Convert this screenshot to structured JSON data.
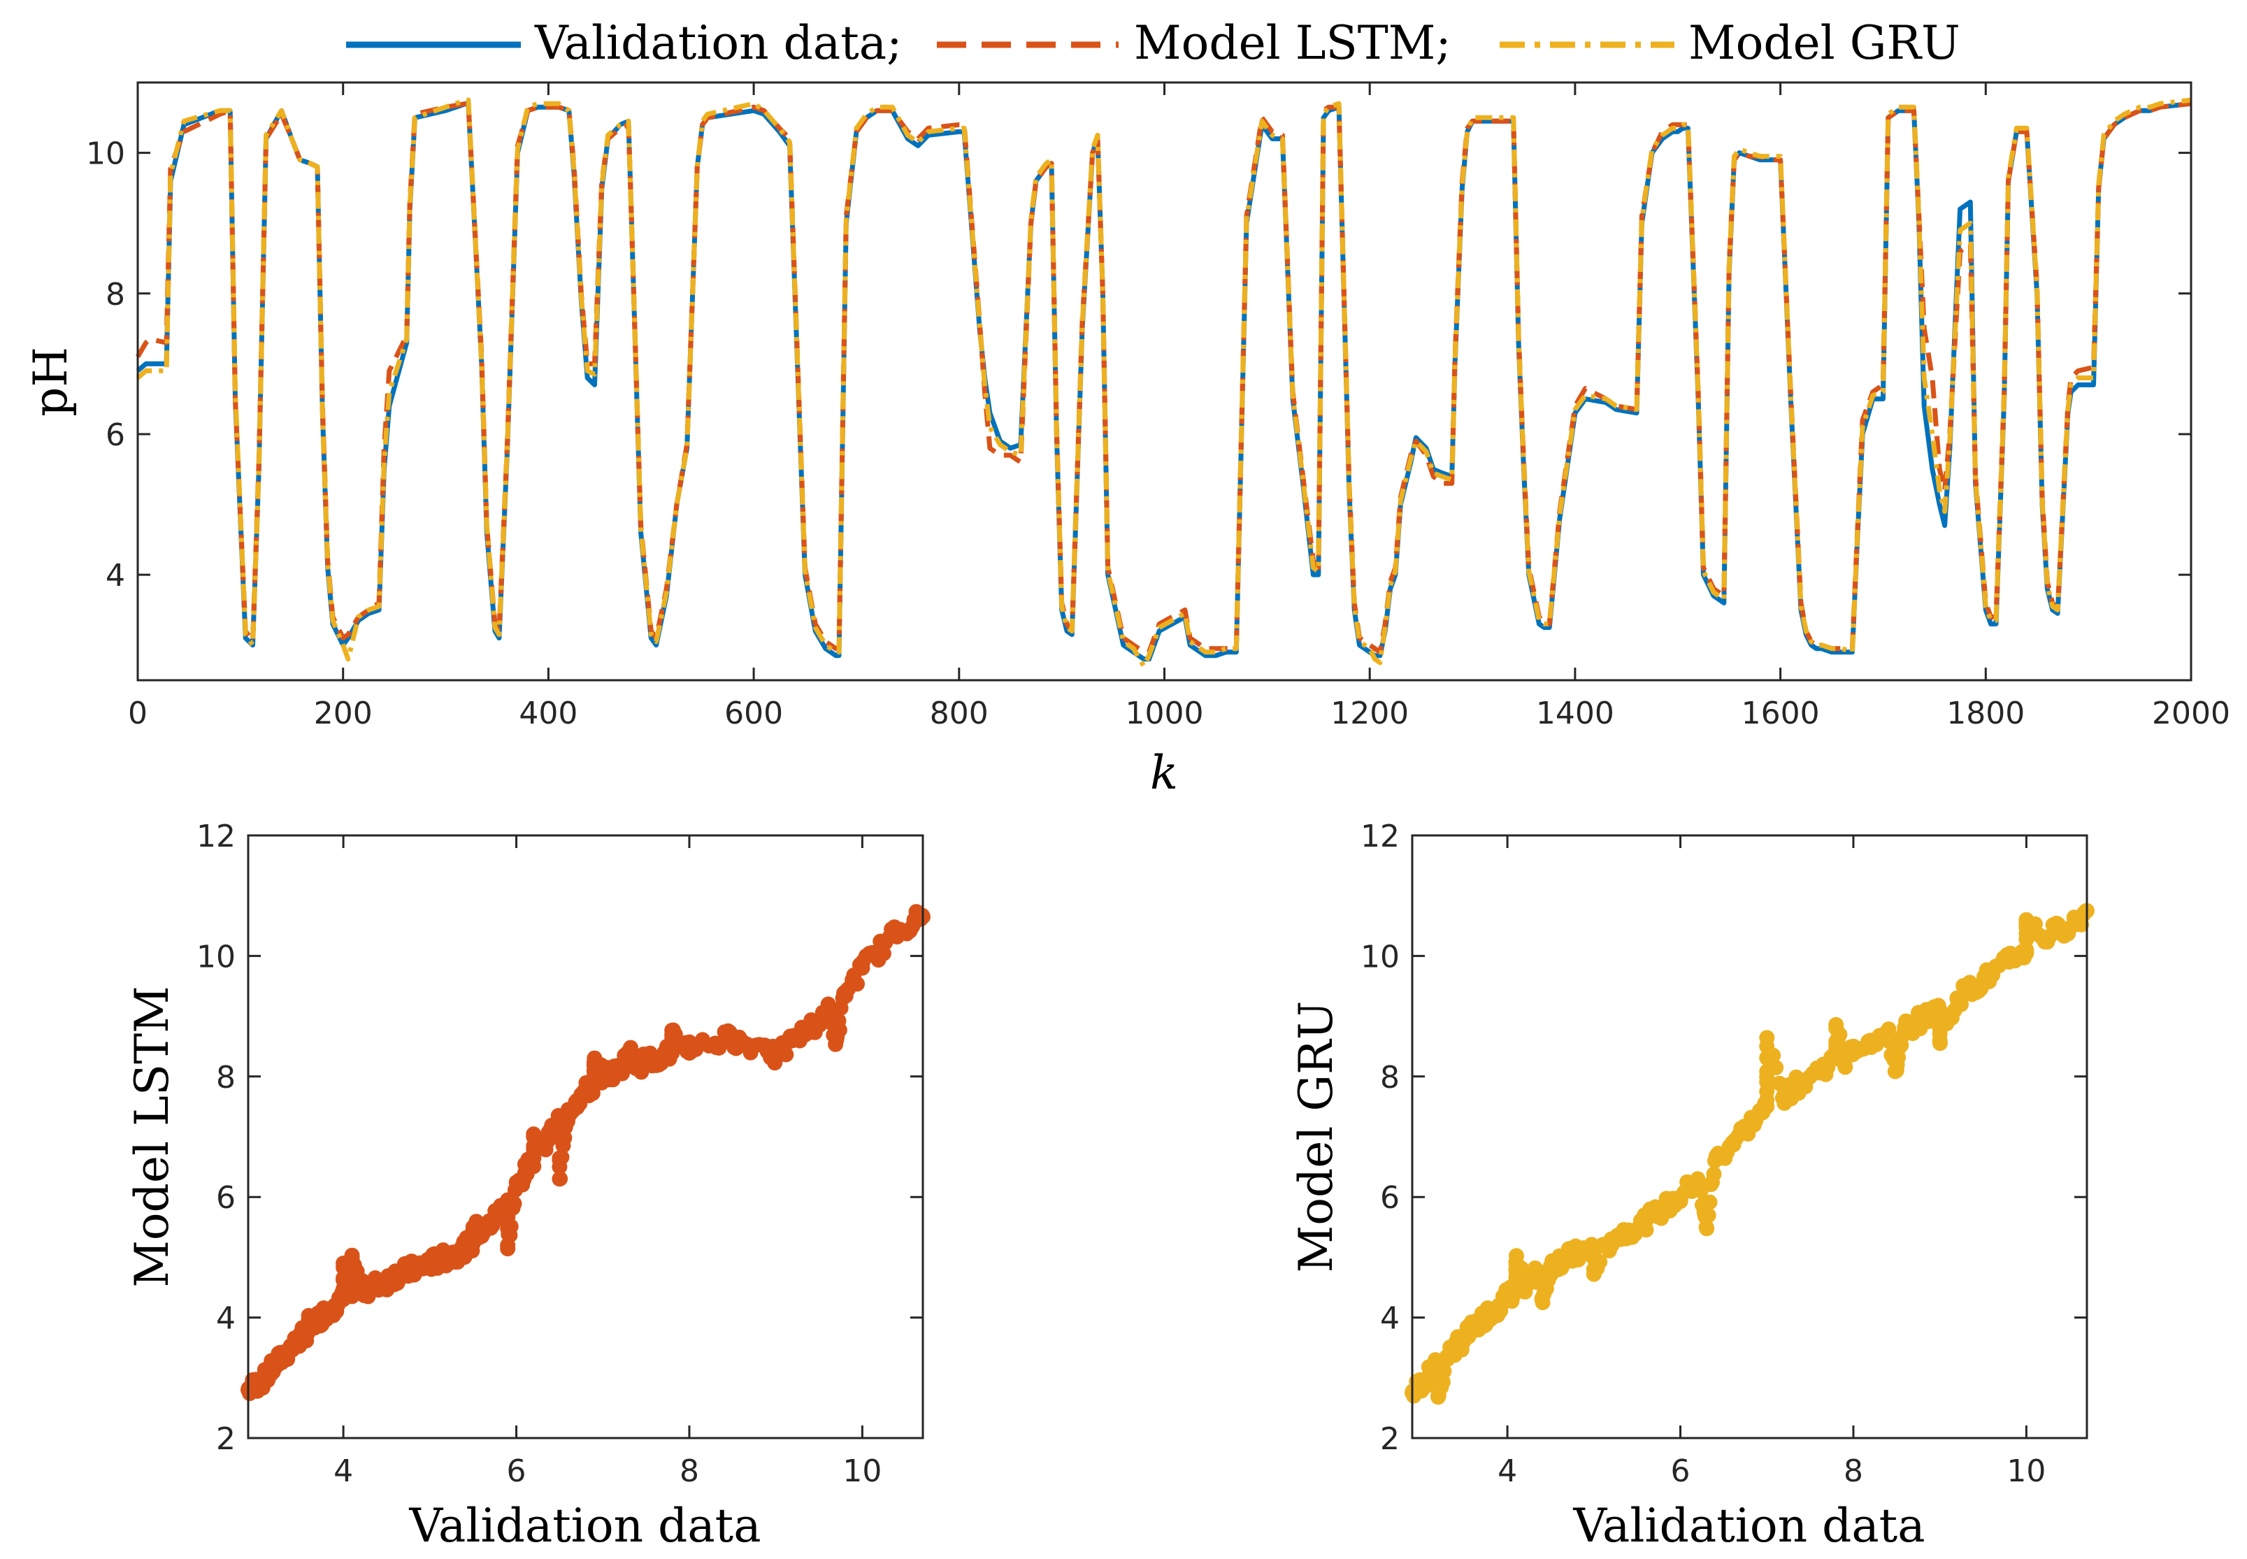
{
  "colors": {
    "validation": "#0072BD",
    "lstm": "#D95319",
    "gru": "#EDB120",
    "axis": "#262626"
  },
  "legend": {
    "validation_label": "Validation data;",
    "lstm_label": "Model LSTM;",
    "gru_label": "Model GRU"
  },
  "chart_data": [
    {
      "id": "timeseries",
      "type": "line",
      "xlabel": "k",
      "ylabel": "pH",
      "xlim": [
        0,
        2000
      ],
      "ylim": [
        2.5,
        11
      ],
      "xticks": [
        0,
        200,
        400,
        600,
        800,
        1000,
        1200,
        1400,
        1600,
        1800,
        2000
      ],
      "yticks": [
        4,
        6,
        8,
        10
      ],
      "grid": false,
      "legend_position": "top-outside",
      "series": [
        {
          "name": "Validation data",
          "style": "solid"
        },
        {
          "name": "Model LSTM",
          "style": "dashed"
        },
        {
          "name": "Model GRU",
          "style": "dash-dot"
        }
      ],
      "x": [
        0,
        8,
        12,
        28,
        32,
        45,
        80,
        90,
        95,
        105,
        112,
        118,
        125,
        140,
        150,
        158,
        168,
        175,
        180,
        185,
        190,
        200,
        205,
        215,
        225,
        235,
        240,
        245,
        262,
        265,
        270,
        300,
        320,
        322,
        335,
        340,
        348,
        352,
        360,
        370,
        380,
        390,
        410,
        420,
        425,
        432,
        438,
        445,
        452,
        458,
        470,
        478,
        480,
        490,
        500,
        505,
        515,
        525,
        535,
        545,
        550,
        555,
        600,
        610,
        625,
        635,
        645,
        650,
        660,
        670,
        680,
        683,
        690,
        700,
        710,
        720,
        735,
        750,
        760,
        770,
        800,
        805,
        820,
        825,
        830,
        840,
        850,
        860,
        870,
        875,
        885,
        890,
        895,
        900,
        905,
        910,
        920,
        930,
        935,
        940,
        945,
        960,
        970,
        980,
        985,
        995,
        1020,
        1025,
        1040,
        1050,
        1060,
        1070,
        1080,
        1095,
        1105,
        1115,
        1125,
        1135,
        1145,
        1150,
        1155,
        1160,
        1170,
        1180,
        1185,
        1190,
        1200,
        1205,
        1210,
        1215,
        1220,
        1225,
        1230,
        1235,
        1240,
        1245,
        1255,
        1262,
        1270,
        1280,
        1283,
        1290,
        1295,
        1300,
        1340,
        1345,
        1350,
        1355,
        1365,
        1370,
        1375,
        1385,
        1395,
        1400,
        1410,
        1430,
        1440,
        1460,
        1465,
        1475,
        1485,
        1490,
        1495,
        1500,
        1505,
        1510,
        1520,
        1525,
        1535,
        1545,
        1550,
        1555,
        1560,
        1570,
        1580,
        1590,
        1600,
        1610,
        1620,
        1625,
        1630,
        1635,
        1640,
        1650,
        1660,
        1670,
        1675,
        1680,
        1690,
        1700,
        1705,
        1715,
        1730,
        1735,
        1740,
        1748,
        1755,
        1760,
        1765,
        1775,
        1785,
        1790,
        1800,
        1805,
        1810,
        1818,
        1822,
        1830,
        1840,
        1850,
        1855,
        1860,
        1865,
        1870,
        1880,
        1883,
        1890,
        1905,
        1910,
        1915,
        1925,
        1935,
        1950,
        1960,
        1970,
        2000
      ],
      "validation": [
        6.9,
        7.0,
        7.0,
        7.0,
        9.6,
        10.4,
        10.6,
        10.6,
        6.5,
        3.1,
        3.0,
        5.5,
        10.2,
        10.6,
        10.2,
        9.9,
        9.85,
        9.8,
        6.3,
        4.1,
        3.3,
        3.0,
        3.1,
        3.35,
        3.45,
        3.5,
        5.5,
        6.4,
        7.3,
        9.2,
        10.5,
        10.6,
        10.7,
        10.7,
        7.0,
        4.6,
        3.2,
        3.1,
        5.8,
        10.0,
        10.6,
        10.65,
        10.65,
        10.6,
        9.7,
        7.9,
        6.8,
        6.7,
        9.5,
        10.2,
        10.4,
        10.45,
        9.5,
        4.6,
        3.1,
        3.0,
        3.7,
        5.0,
        5.8,
        9.8,
        10.4,
        10.5,
        10.6,
        10.55,
        10.3,
        10.1,
        6.0,
        4.0,
        3.2,
        2.95,
        2.85,
        2.85,
        9.0,
        10.3,
        10.5,
        10.6,
        10.6,
        10.2,
        10.1,
        10.25,
        10.3,
        10.3,
        7.5,
        6.8,
        6.3,
        5.9,
        5.8,
        5.85,
        9.0,
        9.6,
        9.8,
        9.85,
        6.0,
        3.5,
        3.2,
        3.15,
        7.5,
        10.0,
        10.2,
        8.0,
        4.0,
        3.0,
        2.9,
        2.8,
        2.8,
        3.2,
        3.4,
        3.0,
        2.85,
        2.85,
        2.9,
        2.9,
        9.0,
        10.4,
        10.2,
        10.2,
        6.5,
        5.3,
        4.0,
        4.0,
        10.5,
        10.6,
        10.65,
        5.2,
        3.5,
        3.0,
        2.9,
        2.85,
        2.85,
        3.2,
        3.8,
        4.0,
        5.0,
        5.3,
        5.6,
        5.95,
        5.8,
        5.5,
        5.45,
        5.4,
        7.0,
        9.5,
        10.3,
        10.45,
        10.45,
        7.3,
        5.5,
        4.0,
        3.3,
        3.25,
        3.25,
        4.8,
        5.8,
        6.3,
        6.5,
        6.45,
        6.35,
        6.3,
        9.0,
        10.0,
        10.2,
        10.25,
        10.3,
        10.3,
        10.35,
        10.35,
        6.5,
        4.0,
        3.7,
        3.6,
        8.3,
        9.9,
        10.0,
        9.95,
        9.9,
        9.9,
        9.9,
        6.5,
        3.5,
        3.15,
        3.0,
        2.95,
        2.95,
        2.9,
        2.9,
        2.9,
        4.5,
        6.0,
        6.5,
        6.5,
        10.5,
        10.6,
        10.6,
        9.0,
        6.4,
        5.5,
        5.0,
        4.7,
        5.8,
        9.2,
        9.3,
        5.3,
        3.5,
        3.3,
        3.3,
        6.5,
        9.6,
        10.3,
        10.3,
        8.0,
        5.0,
        3.8,
        3.5,
        3.45,
        6.3,
        6.6,
        6.7,
        6.7,
        9.5,
        10.2,
        10.4,
        10.5,
        10.6,
        10.6,
        10.65,
        10.7,
        10.7
      ],
      "lstm": [
        7.1,
        7.3,
        7.35,
        7.3,
        9.8,
        10.3,
        10.55,
        10.6,
        6.5,
        3.2,
        3.05,
        5.6,
        10.2,
        10.55,
        10.2,
        9.9,
        9.85,
        9.8,
        6.4,
        4.2,
        3.4,
        3.1,
        3.15,
        3.4,
        3.5,
        3.6,
        5.8,
        6.9,
        7.4,
        9.3,
        10.55,
        10.65,
        10.7,
        10.7,
        7.1,
        4.7,
        3.3,
        3.2,
        5.9,
        10.1,
        10.6,
        10.65,
        10.65,
        10.6,
        9.8,
        8.0,
        7.0,
        7.0,
        9.6,
        10.2,
        10.35,
        10.4,
        9.5,
        4.7,
        3.2,
        3.1,
        3.8,
        5.0,
        5.85,
        9.8,
        10.4,
        10.5,
        10.65,
        10.6,
        10.35,
        10.2,
        6.1,
        4.1,
        3.3,
        3.05,
        2.95,
        2.95,
        9.1,
        10.3,
        10.5,
        10.6,
        10.6,
        10.3,
        10.2,
        10.35,
        10.4,
        10.4,
        7.6,
        6.6,
        5.8,
        5.7,
        5.7,
        5.6,
        9.0,
        9.6,
        9.8,
        9.85,
        6.1,
        3.6,
        3.3,
        3.2,
        7.6,
        10.0,
        10.2,
        8.0,
        4.1,
        3.1,
        3.0,
        2.9,
        2.9,
        3.3,
        3.5,
        3.1,
        2.95,
        2.95,
        2.95,
        2.95,
        9.1,
        10.5,
        10.3,
        10.25,
        6.6,
        5.4,
        4.2,
        4.1,
        10.6,
        10.65,
        10.65,
        5.3,
        3.6,
        3.1,
        3.0,
        2.95,
        2.9,
        3.3,
        3.9,
        4.1,
        5.1,
        5.4,
        5.7,
        5.9,
        5.7,
        5.4,
        5.3,
        5.3,
        7.1,
        9.6,
        10.35,
        10.45,
        10.45,
        7.4,
        5.6,
        4.1,
        3.4,
        3.3,
        3.3,
        4.9,
        5.9,
        6.4,
        6.65,
        6.5,
        6.4,
        6.35,
        9.1,
        10.0,
        10.3,
        10.35,
        10.4,
        10.4,
        10.4,
        10.4,
        6.6,
        4.1,
        3.8,
        3.7,
        8.4,
        9.9,
        10.0,
        9.95,
        9.95,
        9.9,
        9.9,
        6.6,
        3.6,
        3.2,
        3.05,
        3.0,
        3.0,
        2.95,
        2.95,
        2.95,
        4.6,
        6.2,
        6.6,
        6.7,
        10.5,
        10.6,
        10.6,
        9.1,
        7.5,
        6.8,
        5.5,
        5.2,
        6.0,
        8.6,
        8.7,
        5.4,
        3.6,
        3.4,
        3.4,
        6.6,
        9.6,
        10.3,
        10.3,
        8.1,
        5.1,
        3.9,
        3.6,
        3.5,
        6.4,
        6.8,
        6.9,
        6.95,
        9.5,
        10.2,
        10.4,
        10.5,
        10.6,
        10.6,
        10.65,
        10.7,
        10.7
      ],
      "gru": [
        6.8,
        6.9,
        6.9,
        6.9,
        9.7,
        10.45,
        10.6,
        10.6,
        6.6,
        3.15,
        3.0,
        5.5,
        10.25,
        10.6,
        10.2,
        9.9,
        9.85,
        9.8,
        6.3,
        4.15,
        3.35,
        3.0,
        2.8,
        3.4,
        3.5,
        3.55,
        5.6,
        6.6,
        7.35,
        9.25,
        10.5,
        10.65,
        10.75,
        10.75,
        7.0,
        4.7,
        3.25,
        3.15,
        5.85,
        10.05,
        10.65,
        10.7,
        10.7,
        10.6,
        9.75,
        7.95,
        6.9,
        6.85,
        9.55,
        10.25,
        10.4,
        10.45,
        9.5,
        4.65,
        3.15,
        3.05,
        3.75,
        5.0,
        5.8,
        9.8,
        10.45,
        10.55,
        10.7,
        10.6,
        10.35,
        10.15,
        6.05,
        4.05,
        3.25,
        3.0,
        2.9,
        2.9,
        9.05,
        10.35,
        10.55,
        10.65,
        10.65,
        10.25,
        10.15,
        10.3,
        10.35,
        10.35,
        7.55,
        6.7,
        6.1,
        5.85,
        5.75,
        5.7,
        9.05,
        9.65,
        9.85,
        9.9,
        6.05,
        3.55,
        3.25,
        3.2,
        7.55,
        10.05,
        10.25,
        8.0,
        4.05,
        3.05,
        2.95,
        2.7,
        2.85,
        3.25,
        3.45,
        3.05,
        2.9,
        2.9,
        2.95,
        2.95,
        9.05,
        10.45,
        10.25,
        10.2,
        6.55,
        5.35,
        4.1,
        4.05,
        10.55,
        10.65,
        10.7,
        5.25,
        3.55,
        3.05,
        2.95,
        2.8,
        2.75,
        3.25,
        3.85,
        4.05,
        5.05,
        5.35,
        5.65,
        5.9,
        5.75,
        5.45,
        5.4,
        5.35,
        7.05,
        9.55,
        10.3,
        10.5,
        10.5,
        7.35,
        5.55,
        4.05,
        3.35,
        3.3,
        3.3,
        4.85,
        5.85,
        6.35,
        6.55,
        6.5,
        6.4,
        6.35,
        9.05,
        10.05,
        10.25,
        10.3,
        10.35,
        10.35,
        10.4,
        10.4,
        6.55,
        4.05,
        3.75,
        3.65,
        8.35,
        9.95,
        10.05,
        10.0,
        9.95,
        9.95,
        9.95,
        6.55,
        3.55,
        3.2,
        3.05,
        3.0,
        3.0,
        2.95,
        2.95,
        2.9,
        4.55,
        6.1,
        6.55,
        6.6,
        10.55,
        10.65,
        10.65,
        9.05,
        6.8,
        6.0,
        5.2,
        4.9,
        5.9,
        8.9,
        9.0,
        5.35,
        3.55,
        3.35,
        3.35,
        6.55,
        9.65,
        10.35,
        10.35,
        8.05,
        5.05,
        3.85,
        3.55,
        3.5,
        6.35,
        6.7,
        6.8,
        6.8,
        9.55,
        10.25,
        10.45,
        10.55,
        10.65,
        10.65,
        10.7,
        10.75,
        10.75
      ]
    },
    {
      "id": "scatter-lstm",
      "type": "scatter",
      "xlabel": "Validation data",
      "ylabel": "Model LSTM",
      "xlim": [
        2.9,
        10.7
      ],
      "ylim": [
        2,
        12
      ],
      "xticks": [
        4,
        6,
        8,
        10
      ],
      "yticks": [
        2,
        4,
        6,
        8,
        10,
        12
      ],
      "grid": false,
      "x": [
        2.9,
        3.0,
        3.1,
        3.2,
        3.3,
        3.4,
        3.5,
        3.6,
        3.7,
        3.8,
        3.9,
        4.0,
        4.1,
        4.2,
        4.3,
        4.4,
        4.5,
        4.6,
        4.7,
        4.8,
        4.9,
        5.0,
        5.1,
        5.2,
        5.3,
        5.4,
        5.5,
        5.6,
        5.7,
        5.8,
        5.9,
        6.0,
        6.1,
        6.2,
        6.3,
        6.4,
        6.5,
        6.6,
        6.7,
        6.8,
        6.9,
        7.0,
        7.2,
        7.4,
        7.6,
        7.8,
        8.0,
        8.3,
        8.6,
        8.9,
        9.2,
        9.4,
        9.6,
        9.8,
        10.0,
        10.2,
        10.4,
        10.6,
        10.7,
        3.6,
        4.1,
        4.0,
        5.5,
        6.2,
        6.9,
        7.3,
        7.8,
        8.5,
        8.0,
        9.0,
        9.7,
        6.5,
        5.9
      ],
      "y": [
        2.8,
        2.9,
        3.0,
        3.2,
        3.35,
        3.5,
        3.65,
        3.8,
        3.95,
        4.1,
        4.2,
        4.3,
        4.35,
        4.45,
        4.5,
        4.55,
        4.6,
        4.7,
        4.75,
        4.8,
        4.85,
        4.9,
        4.95,
        5.0,
        5.05,
        5.15,
        5.25,
        5.4,
        5.55,
        5.75,
        5.95,
        6.15,
        6.4,
        6.65,
        6.85,
        7.05,
        7.25,
        7.45,
        7.6,
        7.75,
        7.85,
        8.0,
        8.1,
        8.2,
        8.3,
        8.4,
        8.5,
        8.55,
        8.55,
        8.5,
        8.6,
        8.8,
        9.1,
        9.4,
        9.8,
        10.1,
        10.4,
        10.6,
        10.65,
        3.9,
        5.0,
        4.9,
        5.5,
        7.0,
        8.2,
        8.4,
        8.65,
        8.65,
        8.5,
        8.3,
        8.6,
        6.3,
        5.2
      ]
    },
    {
      "id": "scatter-gru",
      "type": "scatter",
      "xlabel": "Validation data",
      "ylabel": "Model GRU",
      "xlim": [
        2.9,
        10.7
      ],
      "ylim": [
        2,
        12
      ],
      "xticks": [
        4,
        6,
        8,
        10
      ],
      "yticks": [
        2,
        4,
        6,
        8,
        10,
        12
      ],
      "grid": false,
      "x": [
        2.9,
        3.0,
        3.1,
        3.2,
        3.3,
        3.4,
        3.5,
        3.6,
        3.7,
        3.8,
        3.9,
        4.0,
        4.1,
        4.2,
        4.3,
        4.4,
        4.5,
        4.6,
        4.7,
        4.8,
        4.9,
        5.0,
        5.2,
        5.4,
        5.6,
        5.8,
        6.0,
        6.2,
        6.4,
        6.6,
        6.8,
        7.0,
        7.2,
        7.4,
        7.6,
        7.8,
        8.0,
        8.2,
        8.4,
        8.6,
        8.8,
        9.0,
        9.2,
        9.4,
        9.6,
        9.8,
        10.0,
        10.2,
        10.4,
        10.6,
        10.7,
        4.1,
        4.4,
        5.0,
        7.0,
        7.8,
        7.9,
        8.5,
        9.0,
        10.0,
        3.2,
        6.3
      ],
      "y": [
        2.75,
        2.9,
        3.05,
        3.2,
        3.35,
        3.5,
        3.65,
        3.8,
        3.95,
        4.1,
        4.2,
        4.35,
        4.45,
        4.55,
        4.65,
        4.75,
        4.85,
        4.95,
        5.0,
        5.05,
        5.1,
        5.15,
        5.3,
        5.45,
        5.6,
        5.8,
        6.0,
        6.3,
        6.6,
        6.9,
        7.2,
        7.5,
        7.7,
        7.9,
        8.1,
        8.3,
        8.5,
        8.6,
        8.7,
        8.8,
        8.95,
        9.1,
        9.3,
        9.5,
        9.7,
        9.9,
        10.1,
        10.3,
        10.45,
        10.6,
        10.75,
        4.9,
        4.3,
        4.8,
        8.5,
        8.8,
        8.2,
        8.1,
        8.6,
        10.6,
        2.7,
        5.5
      ]
    }
  ]
}
